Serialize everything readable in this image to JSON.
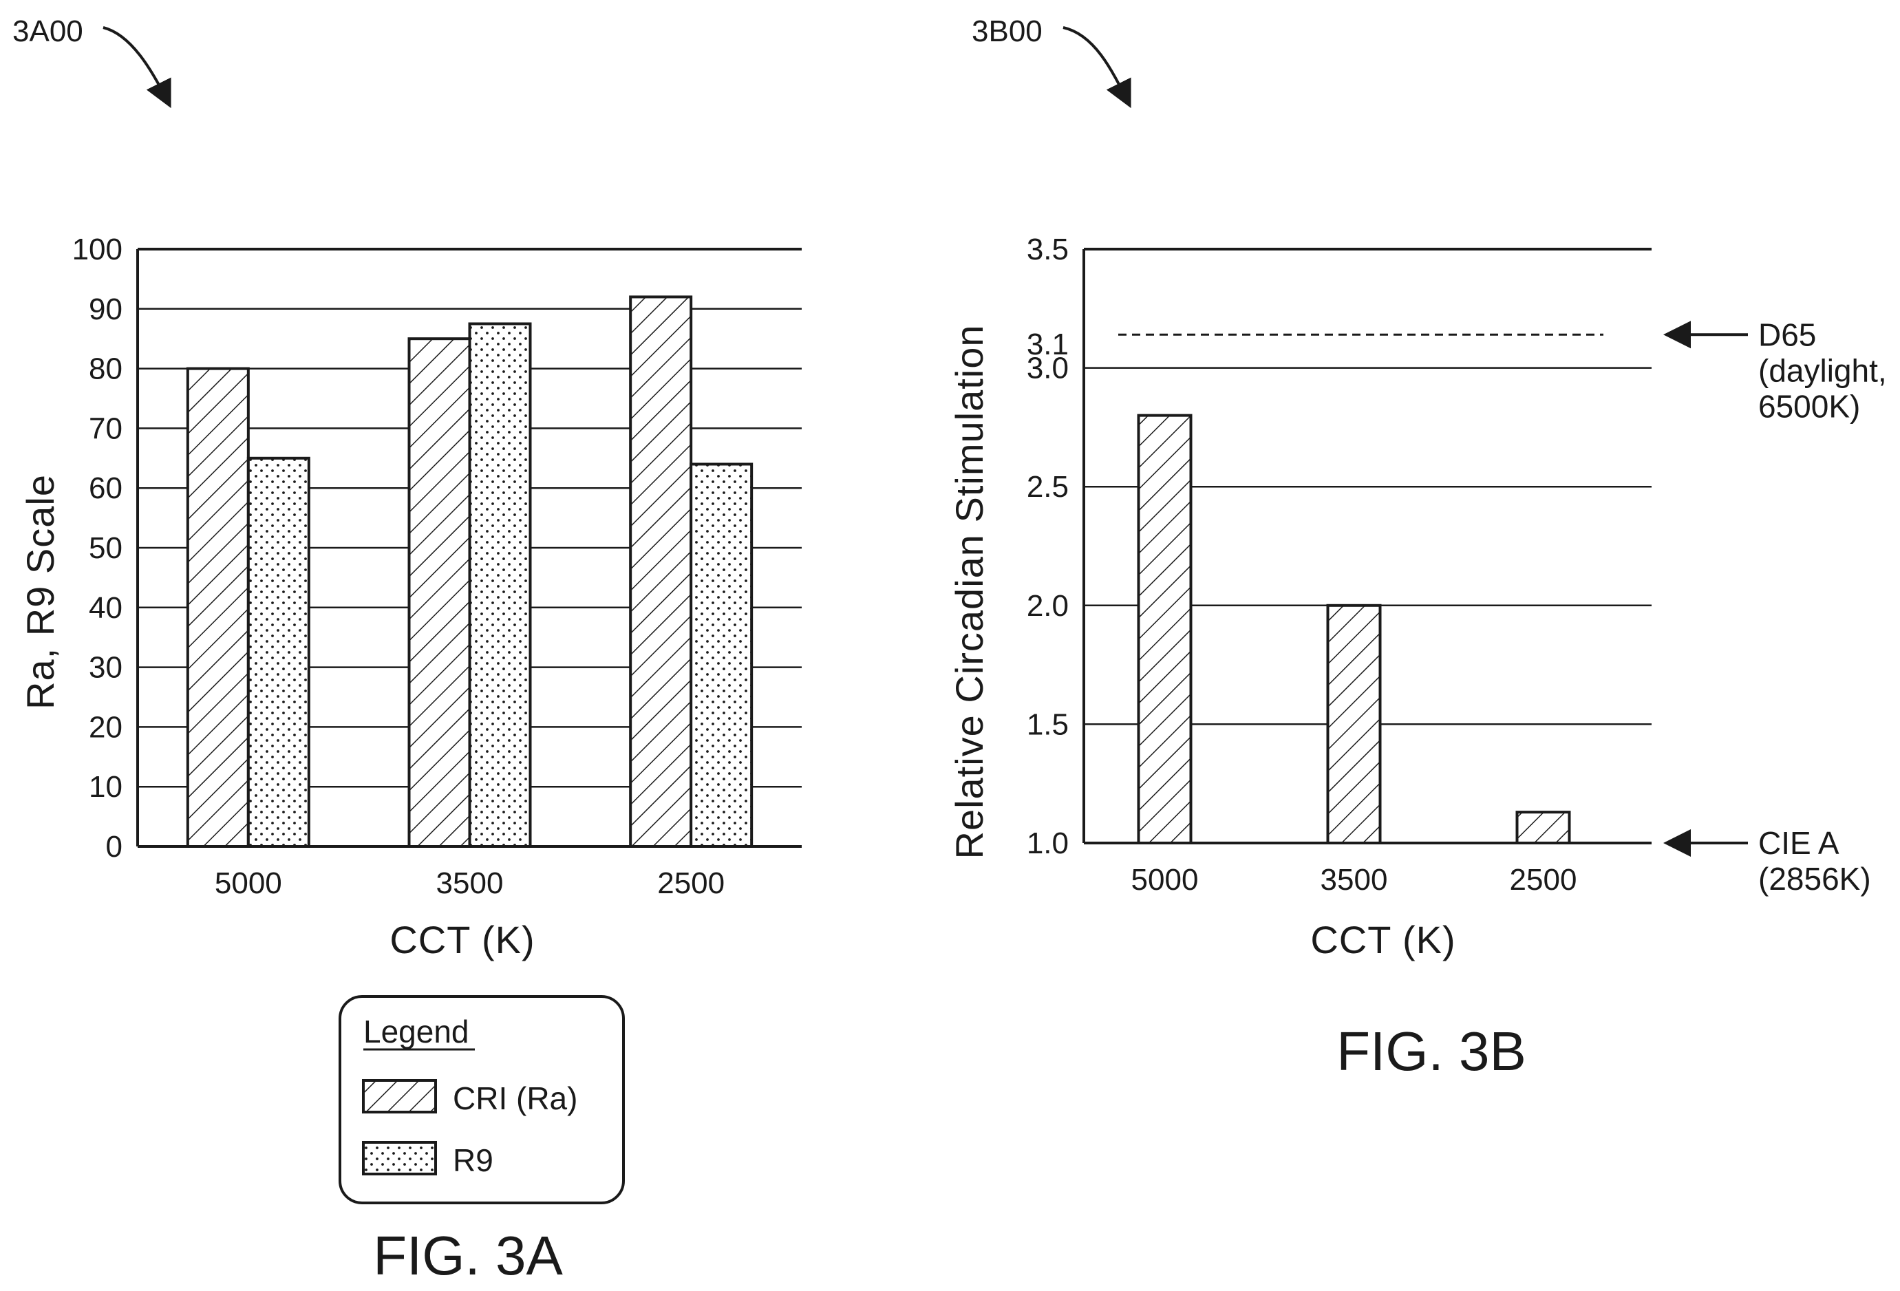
{
  "figures": [
    {
      "id_label": "3A00",
      "caption": "FIG. 3A"
    },
    {
      "id_label": "3B00",
      "caption": "FIG. 3B"
    }
  ],
  "legend": {
    "title": "Legend",
    "items": [
      {
        "label": "CRI (Ra)",
        "pattern": "hatch"
      },
      {
        "label": "R9",
        "pattern": "dots"
      }
    ]
  },
  "chart_data": [
    {
      "type": "bar",
      "xlabel": "CCT (K)",
      "ylabel": "Ra, R9 Scale",
      "categories": [
        "5000",
        "3500",
        "2500"
      ],
      "series": [
        {
          "name": "CRI (Ra)",
          "values": [
            80,
            85,
            92
          ]
        },
        {
          "name": "R9",
          "values": [
            65,
            87.5,
            64
          ]
        }
      ],
      "ylim": [
        0,
        100
      ],
      "yticks": [
        "0",
        "10",
        "20",
        "30",
        "40",
        "50",
        "60",
        "70",
        "80",
        "90",
        "100"
      ],
      "grid": true,
      "legend_position": "below"
    },
    {
      "type": "bar",
      "xlabel": "CCT (K)",
      "ylabel": "Relative Circadian Stimulation",
      "categories": [
        "5000",
        "3500",
        "2500"
      ],
      "values": [
        2.8,
        2.0,
        1.13
      ],
      "ylim": [
        1.0,
        3.5
      ],
      "yticks": [
        "1.0",
        "1.5",
        "2.0",
        "2.5",
        "3.0",
        "3.5"
      ],
      "extra_tick": {
        "label": "3.1",
        "value": 3.1
      },
      "grid": true,
      "reference_lines": [
        {
          "value": 3.14,
          "label": "D65\n(daylight,\n6500K)",
          "style": "dashed"
        },
        {
          "value": 1.0,
          "label": "CIE A\n(2856K)",
          "style": "axis"
        }
      ]
    }
  ]
}
